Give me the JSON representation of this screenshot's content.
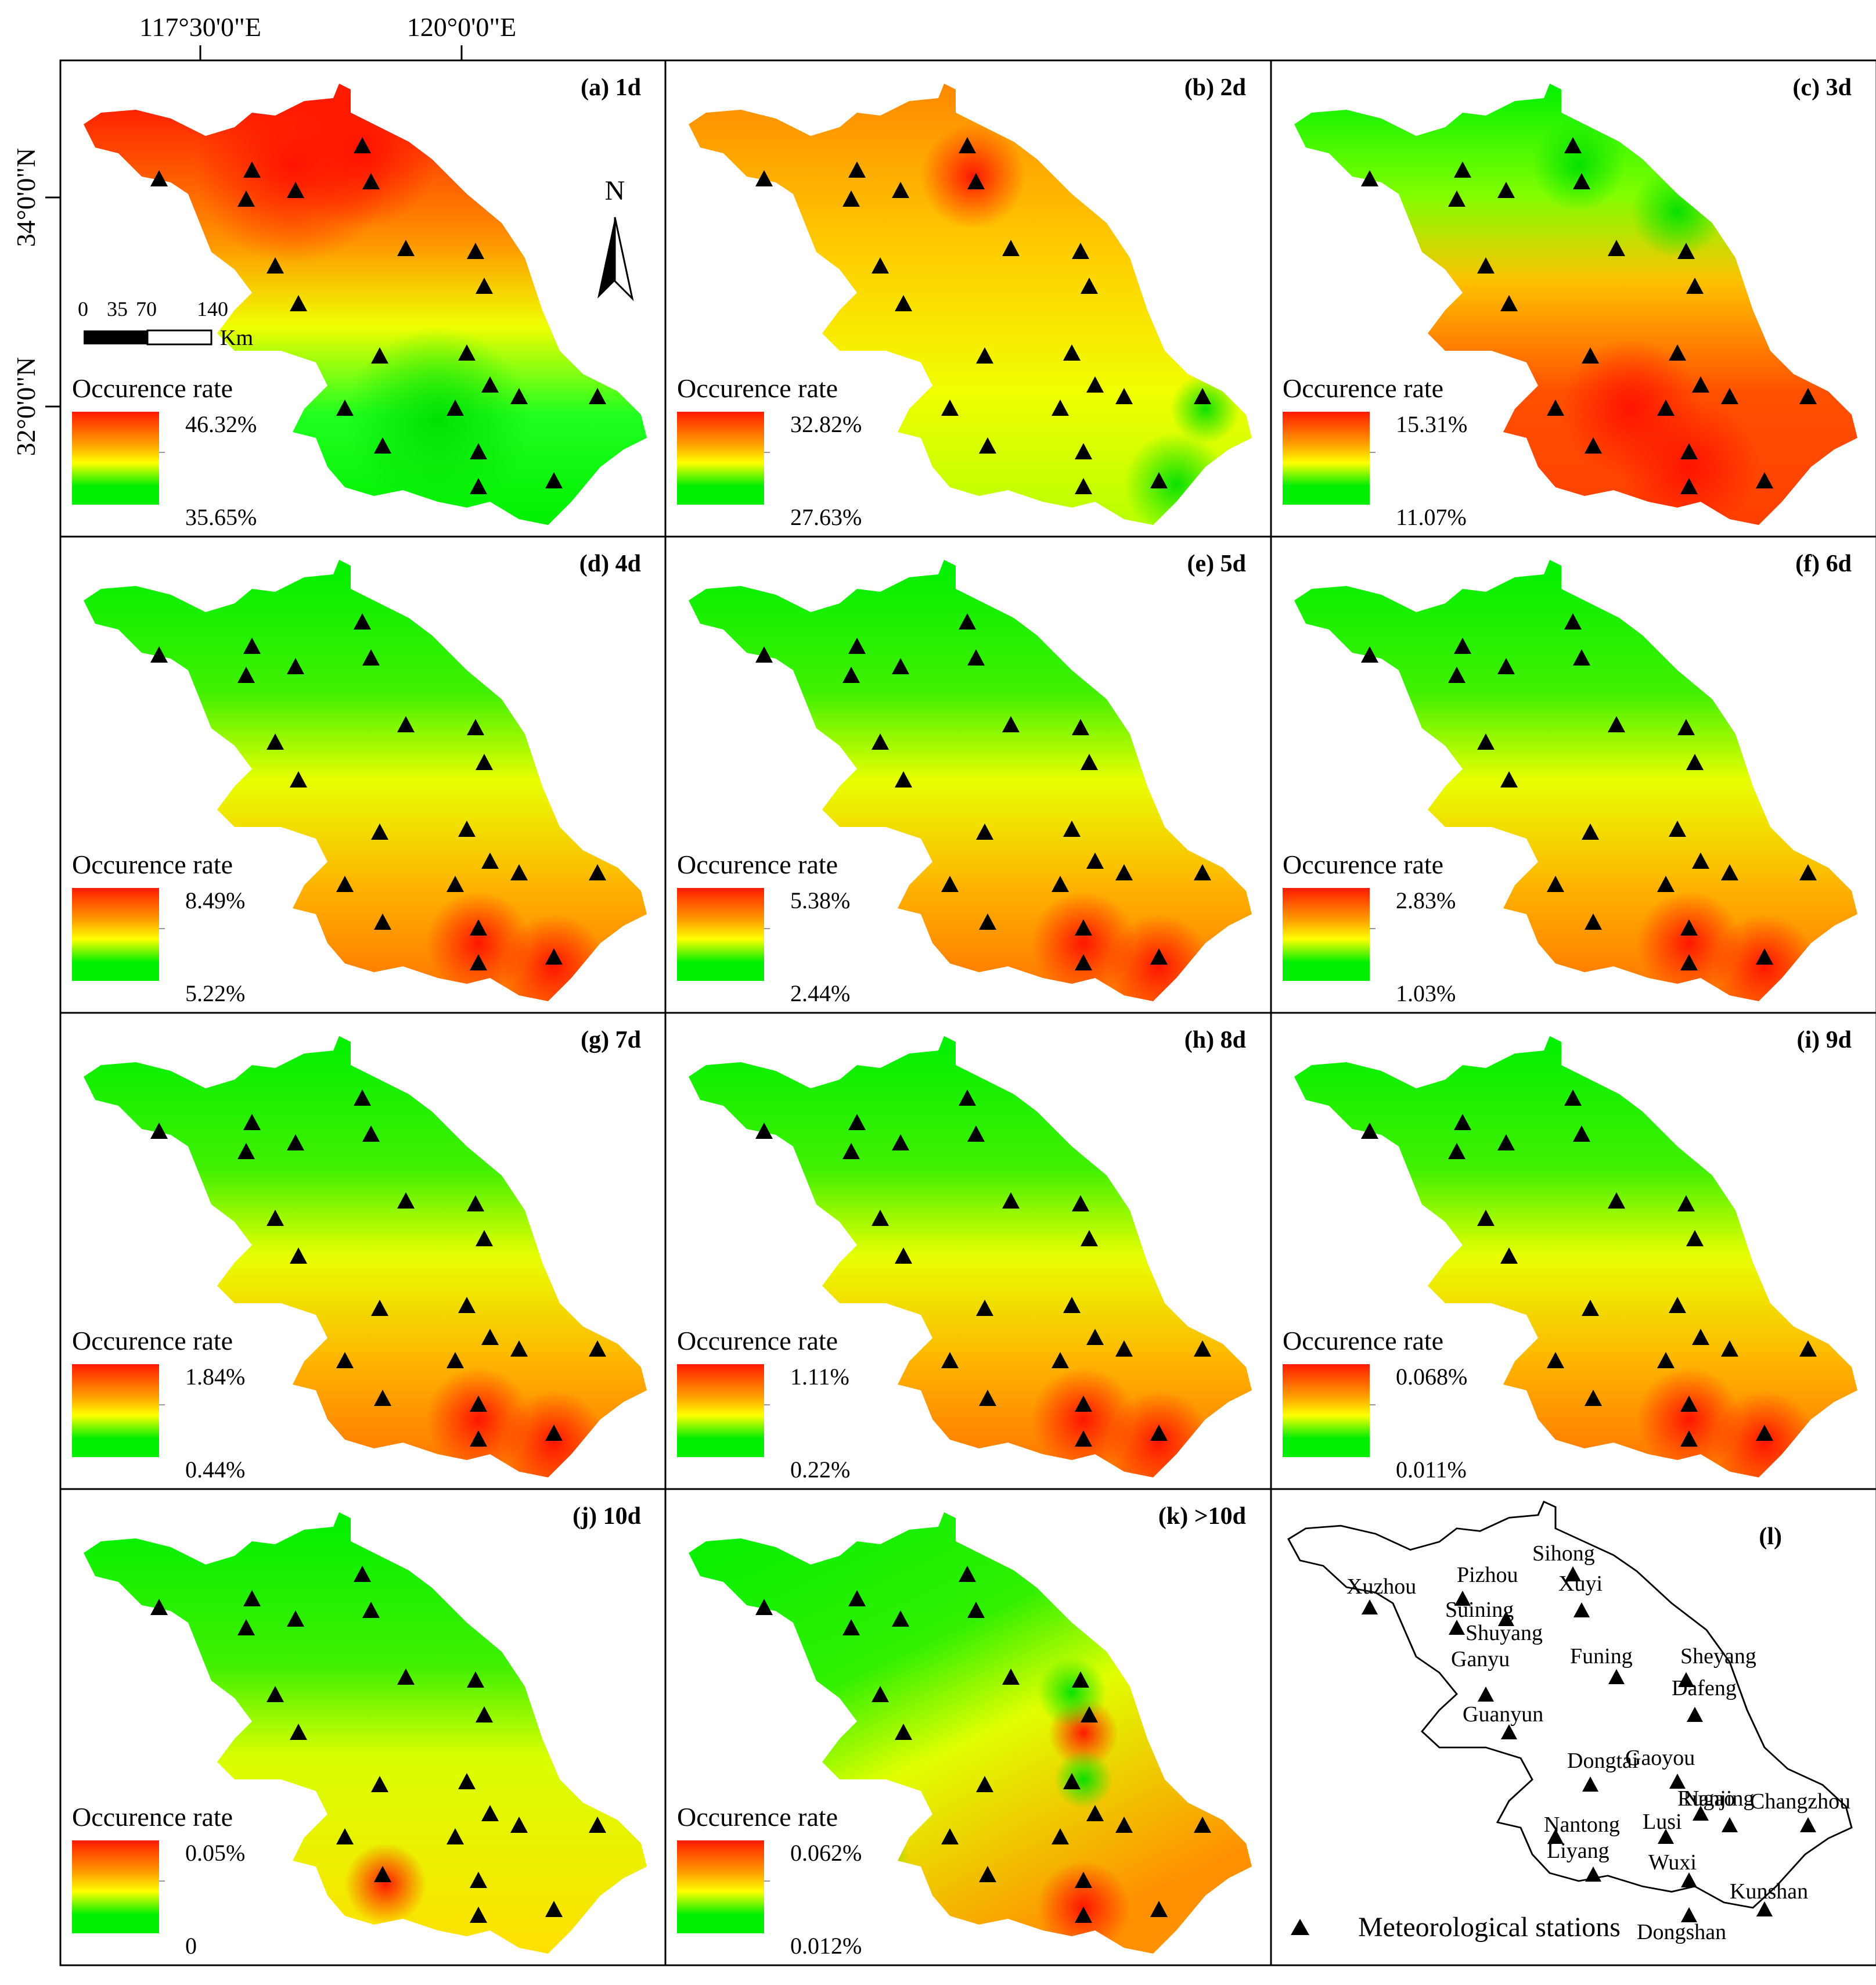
{
  "axes": {
    "top_labels": [
      "117°30'0\"E",
      "120°0'0\"E"
    ],
    "left_labels": [
      "34°0'0\"N",
      "32°0'0\"N"
    ]
  },
  "legend_title": "Occurence rate",
  "panels": [
    {
      "label": "(a) 1d",
      "max": "46.32%",
      "min": "35.65%",
      "pattern": "a"
    },
    {
      "label": "(b) 2d",
      "max": "32.82%",
      "min": "27.63%",
      "pattern": "b"
    },
    {
      "label": "(c) 3d",
      "max": "15.31%",
      "min": "11.07%",
      "pattern": "c"
    },
    {
      "label": "(d) 4d",
      "max": "8.49%",
      "min": "5.22%",
      "pattern": "d"
    },
    {
      "label": "(e) 5d",
      "max": "5.38%",
      "min": "2.44%",
      "pattern": "d"
    },
    {
      "label": "(f) 6d",
      "max": "2.83%",
      "min": "1.03%",
      "pattern": "d"
    },
    {
      "label": "(g) 7d",
      "max": "1.84%",
      "min": "0.44%",
      "pattern": "d"
    },
    {
      "label": "(h) 8d",
      "max": "1.11%",
      "min": "0.22%",
      "pattern": "d"
    },
    {
      "label": "(i) 9d",
      "max": "0.068%",
      "min": "0.011%",
      "pattern": "d"
    },
    {
      "label": "(j) 10d",
      "max": "0.05%",
      "min": "0",
      "pattern": "j"
    },
    {
      "label": "(k) >10d",
      "max": "0.062%",
      "min": "0.012%",
      "pattern": "k"
    }
  ],
  "north_label": "N",
  "scalebar": {
    "ticks": [
      "0",
      "35",
      "70",
      "140"
    ],
    "unit": "Km"
  },
  "station_panel": {
    "label": "(l)",
    "stations": [
      "Xuzhou",
      "Pizhou",
      "Suining",
      "Shuyang",
      "Sihong",
      "Xuyi",
      "Ganyu",
      "Guanyun",
      "Funing",
      "Sheyang",
      "Dafeng",
      "Dongtai",
      "Gaoyou",
      "Rugao",
      "Nanjing",
      "Changzhou",
      "Nantong",
      "Lusi",
      "Liyang",
      "Wuxi",
      "Dongshan",
      "Kunshan"
    ],
    "legend": "Meteorological stations"
  },
  "colors": {
    "high": "#ff1a00",
    "mid_high": "#ff9a00",
    "mid": "#ffff00",
    "low": "#00ee00"
  }
}
